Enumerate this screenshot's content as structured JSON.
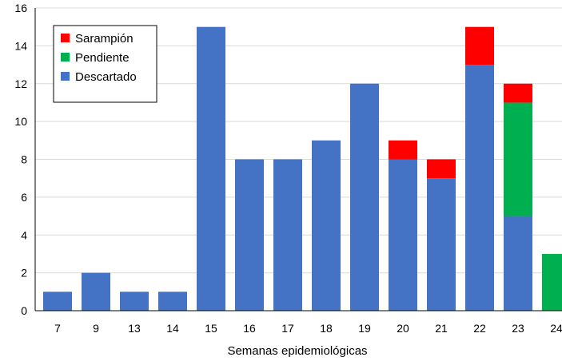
{
  "chart_data": {
    "type": "bar",
    "stacked": true,
    "categories": [
      "7",
      "9",
      "13",
      "14",
      "15",
      "16",
      "17",
      "18",
      "19",
      "20",
      "21",
      "22",
      "23",
      "24"
    ],
    "series": [
      {
        "name": "Descartado",
        "color": "#4472C4",
        "values": [
          1,
          2,
          1,
          1,
          15,
          8,
          8,
          9,
          12,
          8,
          7,
          13,
          5,
          0
        ]
      },
      {
        "name": "Pendiente",
        "color": "#00B050",
        "values": [
          0,
          0,
          0,
          0,
          0,
          0,
          0,
          0,
          0,
          0,
          0,
          0,
          6,
          3
        ]
      },
      {
        "name": "Sarampión",
        "color": "#FF0000",
        "values": [
          0,
          0,
          0,
          0,
          0,
          0,
          0,
          0,
          0,
          1,
          1,
          2,
          1,
          0
        ]
      }
    ],
    "legend_order": [
      "Sarampión",
      "Pendiente",
      "Descartado"
    ],
    "xlabel": "Semanas epidemiológicas",
    "ylabel": "",
    "ylim": [
      0,
      16
    ],
    "yticks": [
      "0",
      "2",
      "4",
      "6",
      "8",
      "10",
      "12",
      "14",
      "16"
    ],
    "grid": true,
    "legend_position": "top-left"
  }
}
